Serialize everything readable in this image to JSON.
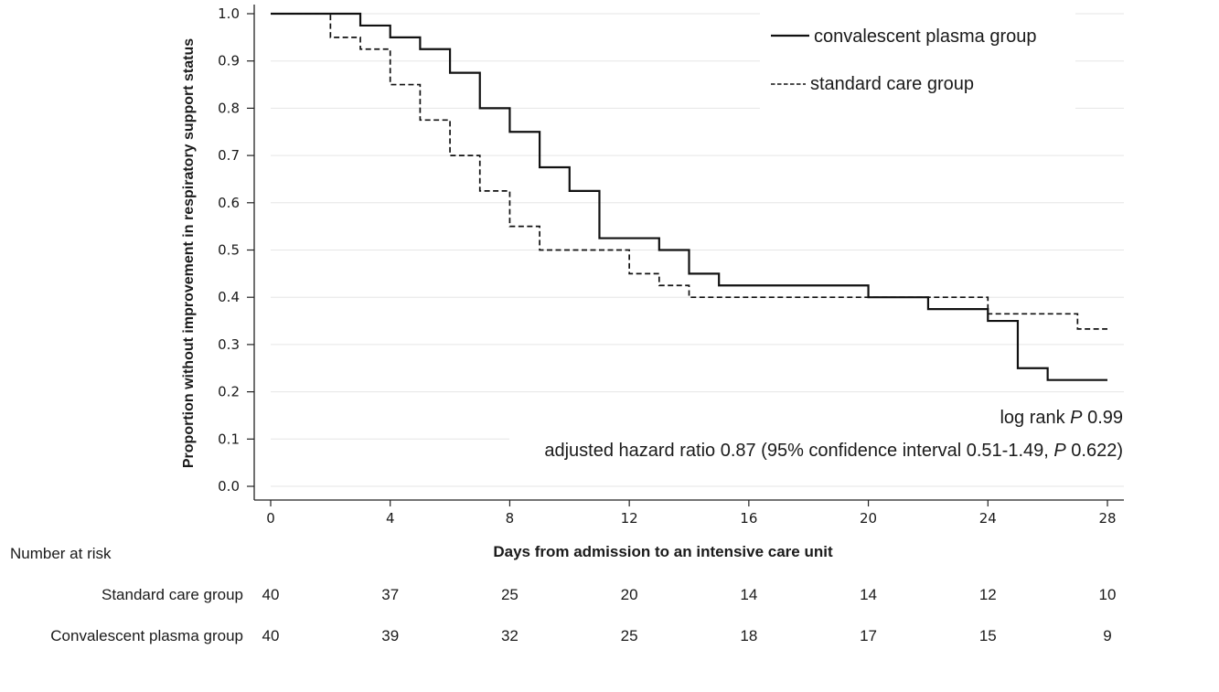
{
  "chart_data": {
    "type": "line",
    "step": true,
    "ylabel": "Proportion without improvement in respiratory support status",
    "xlabel": "Days from admission to an intensive care unit",
    "xlim": [
      0,
      28
    ],
    "ylim": [
      0,
      1
    ],
    "xticks": [
      "0",
      "4",
      "8",
      "12",
      "16",
      "20",
      "24",
      "28"
    ],
    "yticks": [
      "0.0",
      "0.1",
      "0.2",
      "0.3",
      "0.4",
      "0.5",
      "0.6",
      "0.7",
      "0.8",
      "0.9",
      "1.0"
    ],
    "grid": true,
    "legend_position": "top-right",
    "series": [
      {
        "name": "convalescent plasma group",
        "style": "solid",
        "x": [
          0,
          3,
          4,
          5,
          6,
          7,
          8,
          9,
          10,
          11,
          13,
          14,
          15,
          20,
          22,
          24,
          25,
          26,
          28
        ],
        "y": [
          1.0,
          0.975,
          0.95,
          0.925,
          0.875,
          0.8,
          0.75,
          0.675,
          0.625,
          0.525,
          0.5,
          0.45,
          0.425,
          0.4,
          0.375,
          0.35,
          0.25,
          0.225,
          0.225
        ]
      },
      {
        "name": "standard care group",
        "style": "dashed",
        "x": [
          0,
          2,
          3,
          4,
          5,
          6,
          7,
          8,
          9,
          12,
          13,
          14,
          24,
          27,
          28
        ],
        "y": [
          1.0,
          0.95,
          0.925,
          0.85,
          0.775,
          0.7,
          0.625,
          0.55,
          0.5,
          0.45,
          0.425,
          0.4,
          0.365,
          0.333,
          0.333
        ]
      }
    ],
    "annotations": {
      "logrank_prefix": "log rank ",
      "logrank_p": "P",
      "logrank_value": " 0.99",
      "hazard_prefix": "adjusted hazard ratio 0.87 (95% confidence interval 0.51-1.49, ",
      "hazard_p": "P",
      "hazard_suffix": " 0.622)"
    }
  },
  "risk_table": {
    "title": "Number at risk",
    "rows": [
      {
        "label": "Standard care group",
        "values": [
          "40",
          "37",
          "25",
          "20",
          "14",
          "14",
          "12",
          "10"
        ]
      },
      {
        "label": "Convalescent plasma group",
        "values": [
          "40",
          "39",
          "32",
          "25",
          "18",
          "17",
          "15",
          "9"
        ]
      }
    ]
  }
}
